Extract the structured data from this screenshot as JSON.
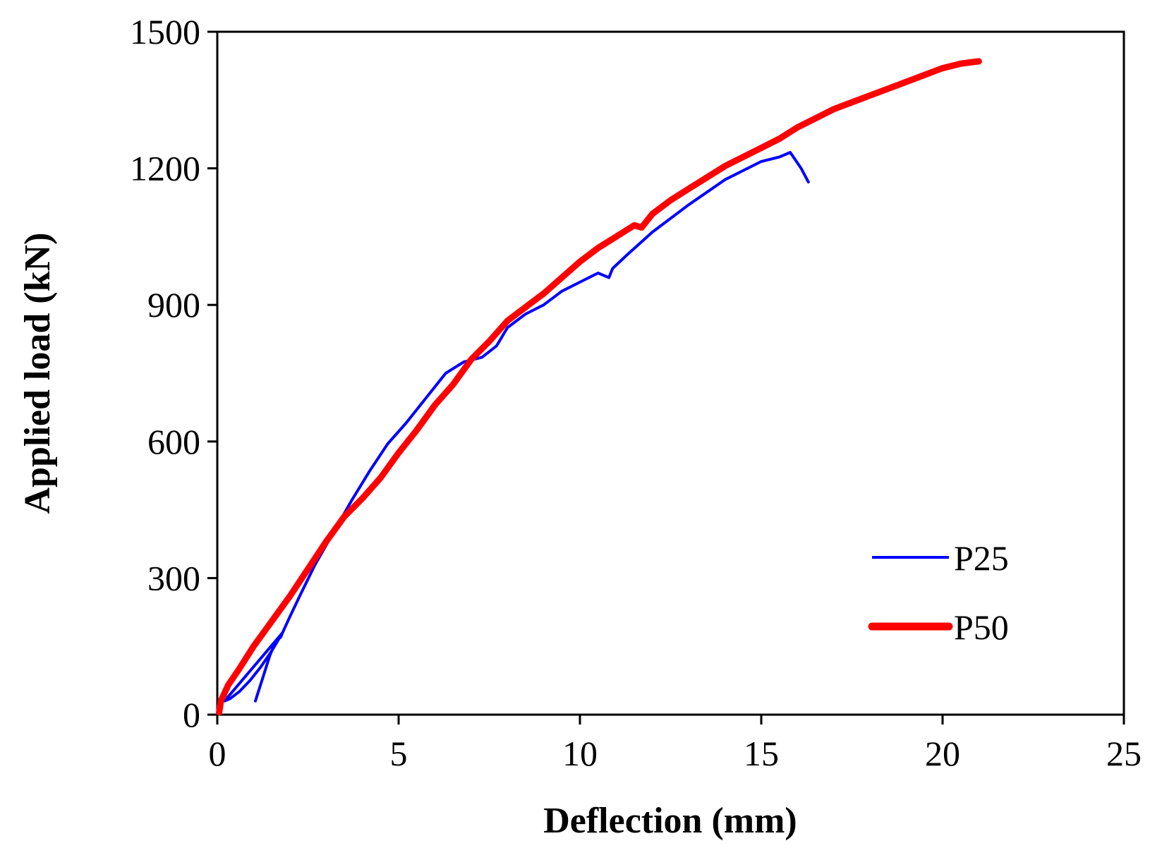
{
  "chart_data": {
    "type": "line",
    "title": "",
    "xlabel": "Deflection (mm)",
    "ylabel": "Applied load (kN)",
    "xlim": [
      0,
      25
    ],
    "ylim": [
      0,
      1500
    ],
    "xticks": [
      0,
      5,
      10,
      15,
      20,
      25
    ],
    "yticks": [
      0,
      300,
      600,
      900,
      1200,
      1500
    ],
    "grid": false,
    "legend_position": "bottom-right",
    "series": [
      {
        "name": "P25",
        "color": "#0000ff",
        "x": [
          1.05,
          1.15,
          1.25,
          1.35,
          1.45,
          1.55,
          1.65,
          1.75,
          1.8,
          1.5,
          1.2,
          0.9,
          0.6,
          0.35,
          0.2,
          1.8,
          2.0,
          2.3,
          2.7,
          3.2,
          3.7,
          4.2,
          4.7,
          5.2,
          5.8,
          6.3,
          6.8,
          7.3,
          7.7,
          8.0,
          8.5,
          9.0,
          9.5,
          10.0,
          10.5,
          10.8,
          10.9,
          11.3,
          12.0,
          13.0,
          14.0,
          15.0,
          15.5,
          15.8,
          16.1,
          16.3
        ],
        "values": [
          30,
          55,
          80,
          105,
          130,
          150,
          165,
          170,
          180,
          140,
          105,
          75,
          50,
          35,
          30,
          180,
          215,
          265,
          330,
          400,
          470,
          535,
          595,
          640,
          700,
          750,
          775,
          785,
          810,
          850,
          880,
          900,
          930,
          950,
          970,
          960,
          980,
          1010,
          1060,
          1120,
          1175,
          1215,
          1225,
          1235,
          1200,
          1170
        ]
      },
      {
        "name": "P50",
        "color": "#ff0000",
        "x": [
          0.05,
          0.1,
          0.3,
          0.6,
          1.0,
          1.5,
          2.0,
          2.5,
          3.0,
          3.5,
          4.0,
          4.5,
          5.0,
          5.5,
          6.0,
          6.5,
          7.0,
          7.5,
          8.0,
          8.5,
          9.0,
          9.5,
          10.0,
          10.5,
          11.0,
          11.5,
          11.7,
          12.0,
          12.5,
          13.0,
          13.5,
          14.0,
          14.5,
          15.0,
          15.5,
          16.0,
          16.5,
          17.0,
          17.5,
          18.0,
          18.5,
          19.0,
          19.5,
          20.0,
          20.5,
          21.0
        ],
        "values": [
          5,
          30,
          65,
          100,
          150,
          205,
          260,
          320,
          380,
          435,
          475,
          520,
          575,
          625,
          680,
          725,
          780,
          820,
          865,
          895,
          925,
          960,
          995,
          1025,
          1050,
          1075,
          1070,
          1100,
          1130,
          1155,
          1180,
          1205,
          1225,
          1245,
          1265,
          1290,
          1310,
          1330,
          1345,
          1360,
          1375,
          1390,
          1405,
          1420,
          1430,
          1435
        ]
      }
    ]
  }
}
